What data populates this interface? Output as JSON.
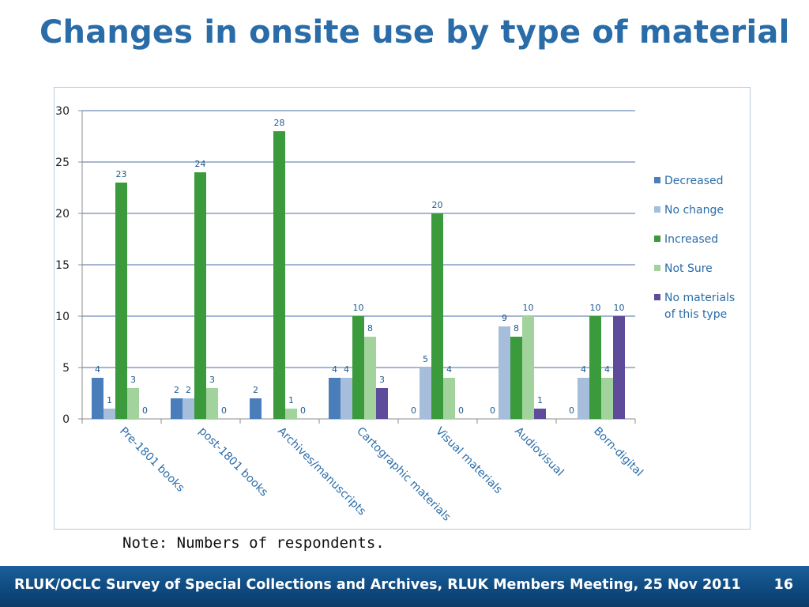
{
  "slide": {
    "title": "Changes in onsite use by type of material",
    "note": "Note: Numbers of respondents.",
    "footer": "RLUK/OCLC Survey of Special Collections and Archives, RLUK Members Meeting, 25 Nov 2011",
    "page_number": "16"
  },
  "chart_data": {
    "type": "bar",
    "categories": [
      "Pre-1801 books",
      "post-1801 books",
      "Archives/manuscripts",
      "Cartographic materials",
      "Visual materials",
      "Audiovisual",
      "Born-digital"
    ],
    "series": [
      {
        "name": "Decreased",
        "color": "#4a7ebb",
        "values": [
          4,
          2,
          2,
          4,
          0,
          0,
          0
        ]
      },
      {
        "name": "No change",
        "color": "#a6bddb",
        "values": [
          1,
          2,
          null,
          4,
          5,
          9,
          4
        ]
      },
      {
        "name": "Increased",
        "color": "#3b9a3b",
        "values": [
          23,
          24,
          28,
          10,
          20,
          8,
          10
        ]
      },
      {
        "name": "Not Sure",
        "color": "#a3d39c",
        "values": [
          3,
          3,
          1,
          8,
          4,
          10,
          4
        ]
      },
      {
        "name": "No materials of this type",
        "color": "#5e4c9a",
        "values": [
          0,
          0,
          0,
          3,
          0,
          1,
          10
        ]
      }
    ],
    "legend_lines": [
      [
        "Decreased"
      ],
      [
        "No change"
      ],
      [
        "Increased"
      ],
      [
        "Not Sure"
      ],
      [
        "No materials",
        "of this type"
      ]
    ],
    "y_ticks": [
      0,
      5,
      10,
      15,
      20,
      25,
      30
    ],
    "ylim": [
      0,
      30
    ],
    "grid": true,
    "legend_position": "right",
    "xlabel": "",
    "ylabel": ""
  }
}
